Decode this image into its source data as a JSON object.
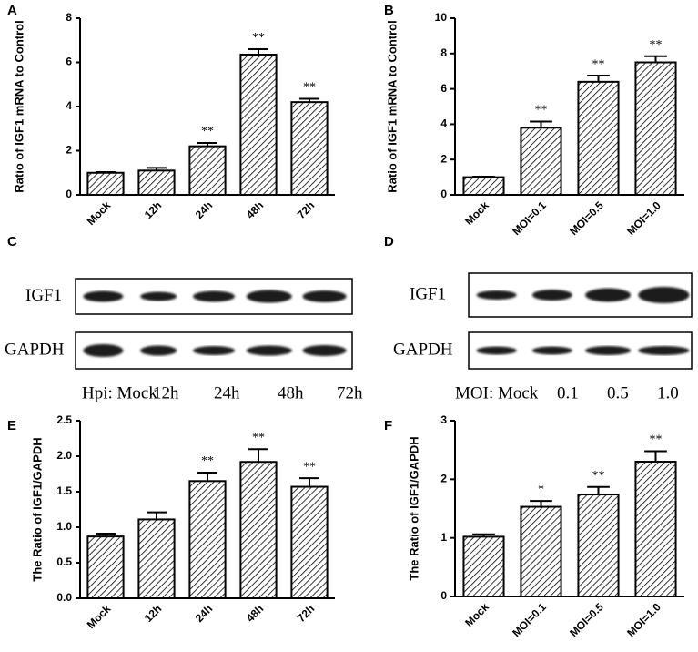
{
  "chart_data": [
    {
      "type": "bar",
      "panel": "A",
      "ylabel": "Ratio of IGF1 mRNA to Control",
      "categories": [
        "Mock",
        "12h",
        "24h",
        "48h",
        "72h"
      ],
      "values": [
        1.0,
        1.1,
        2.2,
        6.35,
        4.2
      ],
      "errors": [
        0.03,
        0.12,
        0.15,
        0.25,
        0.15
      ],
      "annotations": [
        null,
        null,
        "**",
        "**",
        "**"
      ],
      "ylim": [
        0,
        8
      ],
      "yticks": [
        0,
        2,
        4,
        6,
        8
      ],
      "color": "#000000"
    },
    {
      "type": "bar",
      "panel": "B",
      "ylabel": "Ratio of IGF1 mRNA to Control",
      "categories": [
        "Mock",
        "MOI=0.1",
        "MOI=0.5",
        "MOI=1.0"
      ],
      "values": [
        1.0,
        3.8,
        6.4,
        7.5
      ],
      "errors": [
        0.03,
        0.35,
        0.35,
        0.35
      ],
      "annotations": [
        null,
        "**",
        "**",
        "**"
      ],
      "ylim": [
        0,
        10
      ],
      "yticks": [
        0,
        2,
        4,
        6,
        8,
        10
      ],
      "color": "#000000"
    },
    {
      "type": "bar",
      "panel": "E",
      "ylabel": "The Ratio of IGF1/GAPDH",
      "categories": [
        "Mock",
        "12h",
        "24h",
        "48h",
        "72h"
      ],
      "values": [
        0.87,
        1.11,
        1.65,
        1.92,
        1.57
      ],
      "errors": [
        0.04,
        0.1,
        0.12,
        0.18,
        0.12
      ],
      "annotations": [
        null,
        null,
        "**",
        "**",
        "**"
      ],
      "ylim": [
        0,
        2.5
      ],
      "yticks": [
        {
          "value": 0,
          "label": "0.0"
        },
        {
          "value": 0.5,
          "label": "0.5"
        },
        {
          "value": 1,
          "label": "1.0"
        },
        {
          "value": 1.5,
          "label": "1.5"
        },
        {
          "value": 2,
          "label": "2.0"
        },
        {
          "value": 2.5,
          "label": "2.5"
        }
      ],
      "color": "#000000"
    },
    {
      "type": "bar",
      "panel": "F",
      "ylabel": "The Ratio of IGF1/GAPDH",
      "categories": [
        "Mock",
        "MOI=0.1",
        "MOI=0.5",
        "MOI=1.0"
      ],
      "values": [
        1.02,
        1.53,
        1.74,
        2.3
      ],
      "errors": [
        0.04,
        0.1,
        0.13,
        0.18
      ],
      "annotations": [
        null,
        "*",
        "**",
        "**"
      ],
      "ylim": [
        0,
        3
      ],
      "yticks": [
        0,
        1,
        2,
        3
      ],
      "color": "#000000"
    }
  ],
  "blots": [
    {
      "panel": "C",
      "rows": [
        "IGF1",
        "GAPDH"
      ],
      "lanes": [
        "Hpi: Mock",
        "12h",
        "24h",
        "48h",
        "72h"
      ]
    },
    {
      "panel": "D",
      "rows": [
        "IGF1",
        "GAPDH"
      ],
      "lanes": [
        "MOI: Mock",
        "0.1",
        "0.5",
        "1.0"
      ]
    }
  ]
}
